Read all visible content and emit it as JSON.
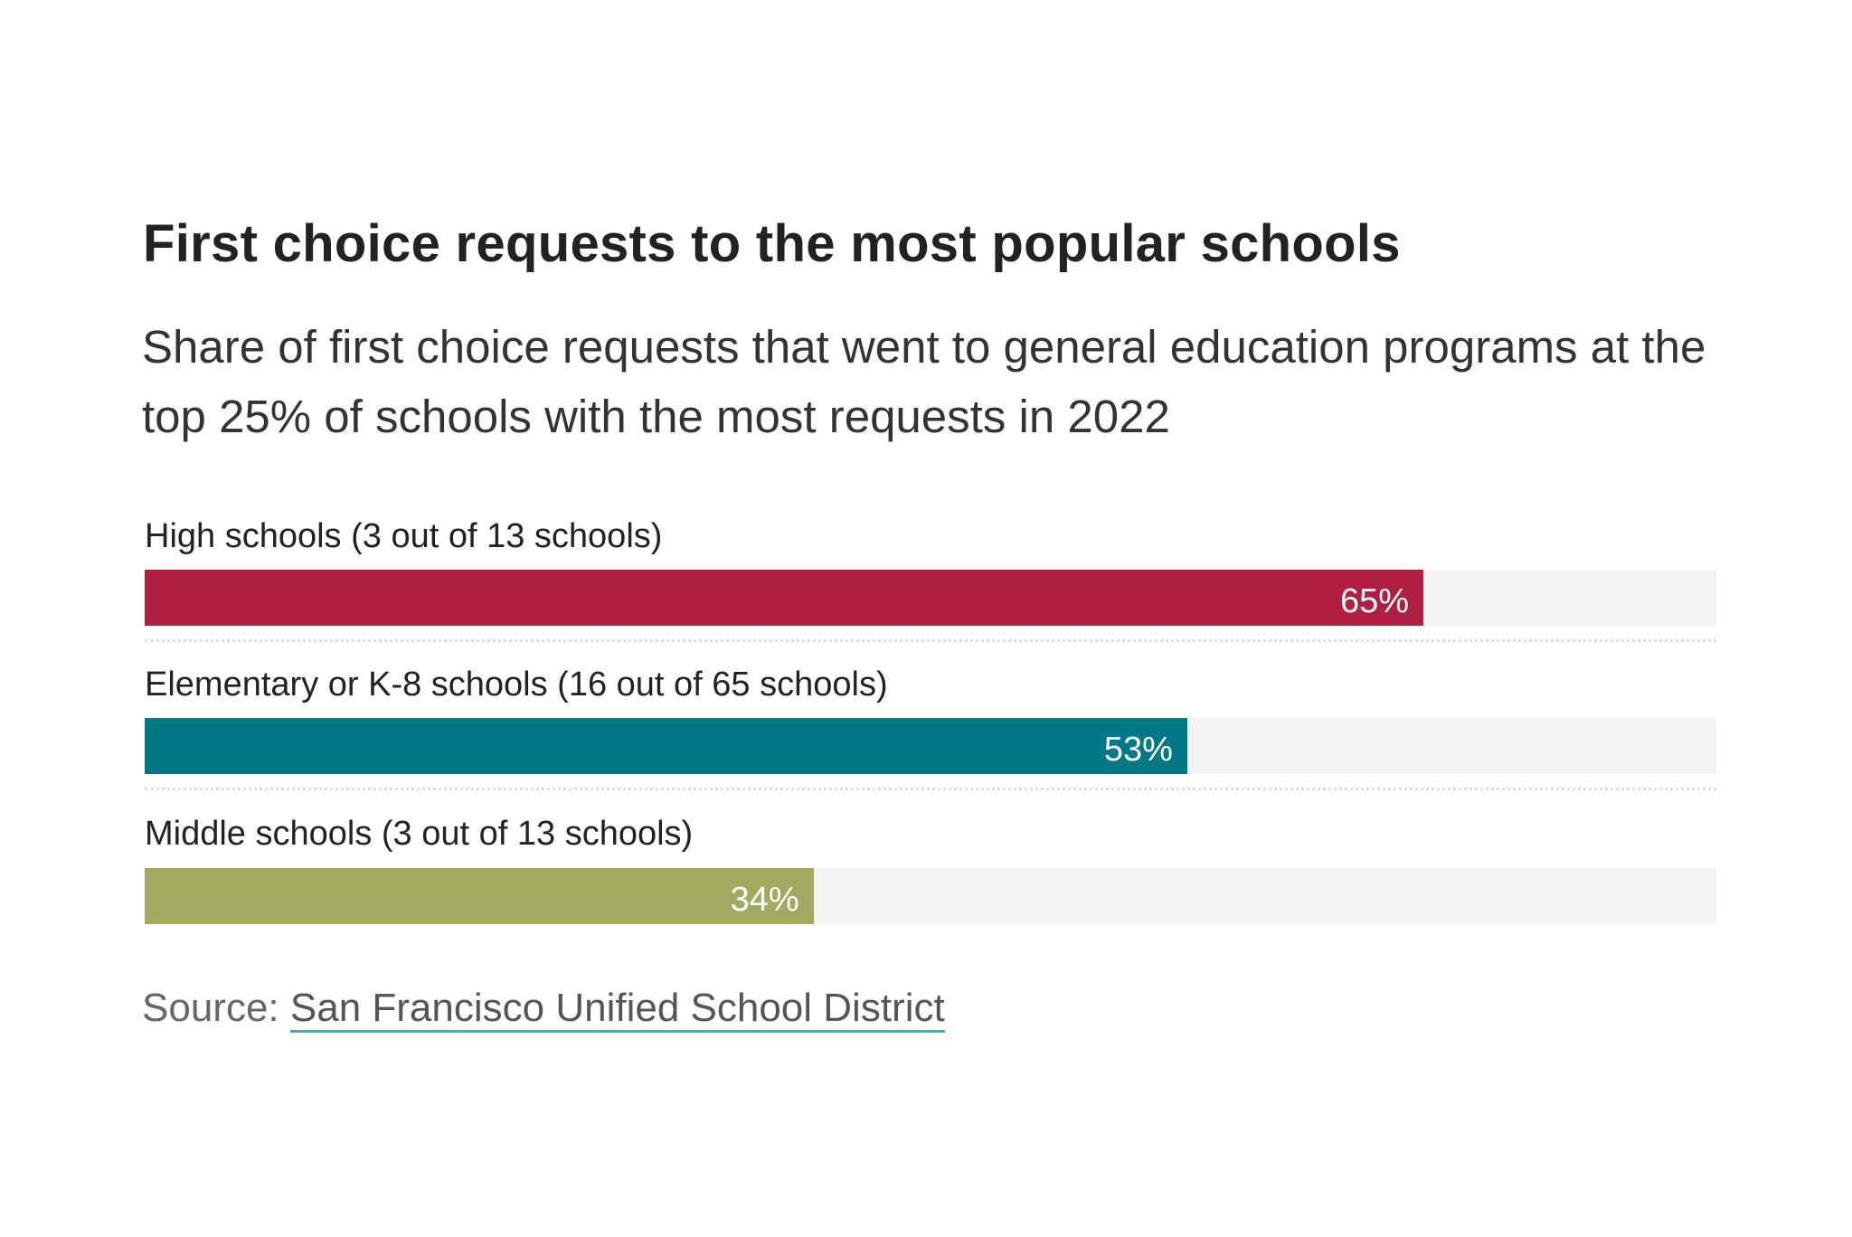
{
  "title": "First choice requests to the most popular schools",
  "subtitle": "Share of first choice requests that went to general education programs at the top 25% of schools with the most requests in 2022",
  "chart_data": {
    "type": "bar",
    "orientation": "horizontal",
    "categories": [
      "High schools (3 out of 13 schools)",
      "Elementary or K-8 schools (16 out of 65 schools)",
      "Middle schools (3 out of 13 schools)"
    ],
    "values": [
      65,
      53,
      34
    ],
    "value_labels": [
      "65%",
      "53%",
      "34%"
    ],
    "colors": [
      "#b01e42",
      "#007886",
      "#a2aa62"
    ],
    "xlim": [
      0,
      100
    ],
    "unit": "%"
  },
  "source": {
    "prefix": "Source:",
    "link_text": "San Francisco Unified School District"
  }
}
